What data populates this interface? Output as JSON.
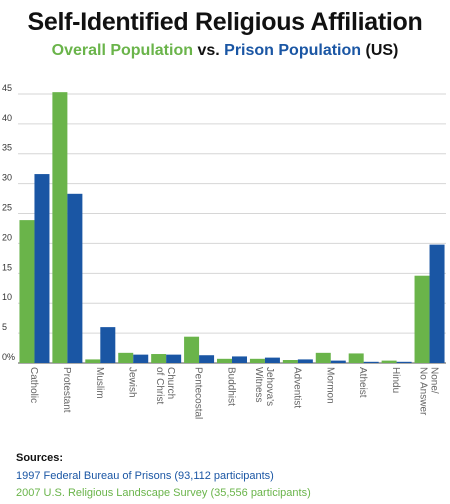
{
  "title": "Self-Identified Religious Affiliation",
  "subtitle": {
    "overall": "Overall Population",
    "vs": "vs.",
    "prison": "Prison Population",
    "us": "(US)"
  },
  "chart_data": {
    "type": "bar",
    "ylim": [
      0,
      47
    ],
    "yticks": [
      {
        "value": 0,
        "label": "0%"
      },
      {
        "value": 5,
        "label": "5"
      },
      {
        "value": 10,
        "label": "10"
      },
      {
        "value": 15,
        "label": "15"
      },
      {
        "value": 20,
        "label": "20"
      },
      {
        "value": 25,
        "label": "25"
      },
      {
        "value": 30,
        "label": "30"
      },
      {
        "value": 35,
        "label": "35"
      },
      {
        "value": 40,
        "label": "40"
      },
      {
        "value": 45,
        "label": "45"
      }
    ],
    "grid": true,
    "categories": [
      [
        "Catholic"
      ],
      [
        "Protestant"
      ],
      [
        "Muslim"
      ],
      [
        "Jewish"
      ],
      [
        "Church",
        "of Christ"
      ],
      [
        "Pentecostal"
      ],
      [
        "Buddhist"
      ],
      [
        "Jehova's",
        "Witness"
      ],
      [
        "Adventist"
      ],
      [
        "Mormon"
      ],
      [
        "Atheist"
      ],
      [
        "Hindu"
      ],
      [
        "None/",
        "No Answer"
      ]
    ],
    "series": [
      {
        "name": "Overall Population",
        "color": "#6ab44a",
        "values": [
          23.9,
          45.3,
          0.6,
          1.7,
          1.5,
          4.4,
          0.7,
          0.7,
          0.5,
          1.7,
          1.6,
          0.4,
          14.6
        ]
      },
      {
        "name": "Prison Population",
        "color": "#1a56a4",
        "values": [
          31.6,
          28.3,
          6.0,
          1.4,
          1.4,
          1.3,
          1.1,
          0.9,
          0.6,
          0.4,
          0.2,
          0.2,
          19.8
        ]
      }
    ]
  },
  "sources": {
    "heading": "Sources:",
    "items": [
      {
        "text": "1997 Federal Bureau of Prisons (93,112 participants)",
        "color": "#1a56a4"
      },
      {
        "text": "2007 U.S. Religious Landscape Survey (35,556 participants)",
        "color": "#6ab44a"
      }
    ]
  }
}
